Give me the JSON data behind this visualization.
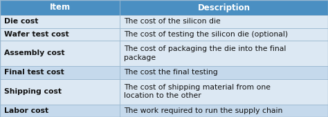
{
  "header": [
    "Item",
    "Description"
  ],
  "rows": [
    [
      "Die cost",
      "The cost of the silicon die"
    ],
    [
      "Wafer test cost",
      "The cost of testing the silicon die (optional)"
    ],
    [
      "Assembly cost",
      "The cost of packaging the die into the final\npackage"
    ],
    [
      "Final test cost",
      "The cost the final testing"
    ],
    [
      "Shipping cost",
      "The cost of shipping material from one\nlocation to the other"
    ],
    [
      "Labor cost",
      "The work required to run the supply chain"
    ]
  ],
  "row_heights": [
    1,
    1,
    2,
    1,
    2,
    1
  ],
  "header_bg": "#4a8fc2",
  "header_text_color": "#ffffff",
  "row_bg_light": "#dce8f3",
  "row_bg_dark": "#c5d9ec",
  "row_bgs": [
    0,
    0,
    0,
    1,
    0,
    1
  ],
  "col_split": 0.365,
  "border_color": "#9ab8d0",
  "text_color": "#111111",
  "header_fontsize": 8.5,
  "body_fontsize": 7.8
}
